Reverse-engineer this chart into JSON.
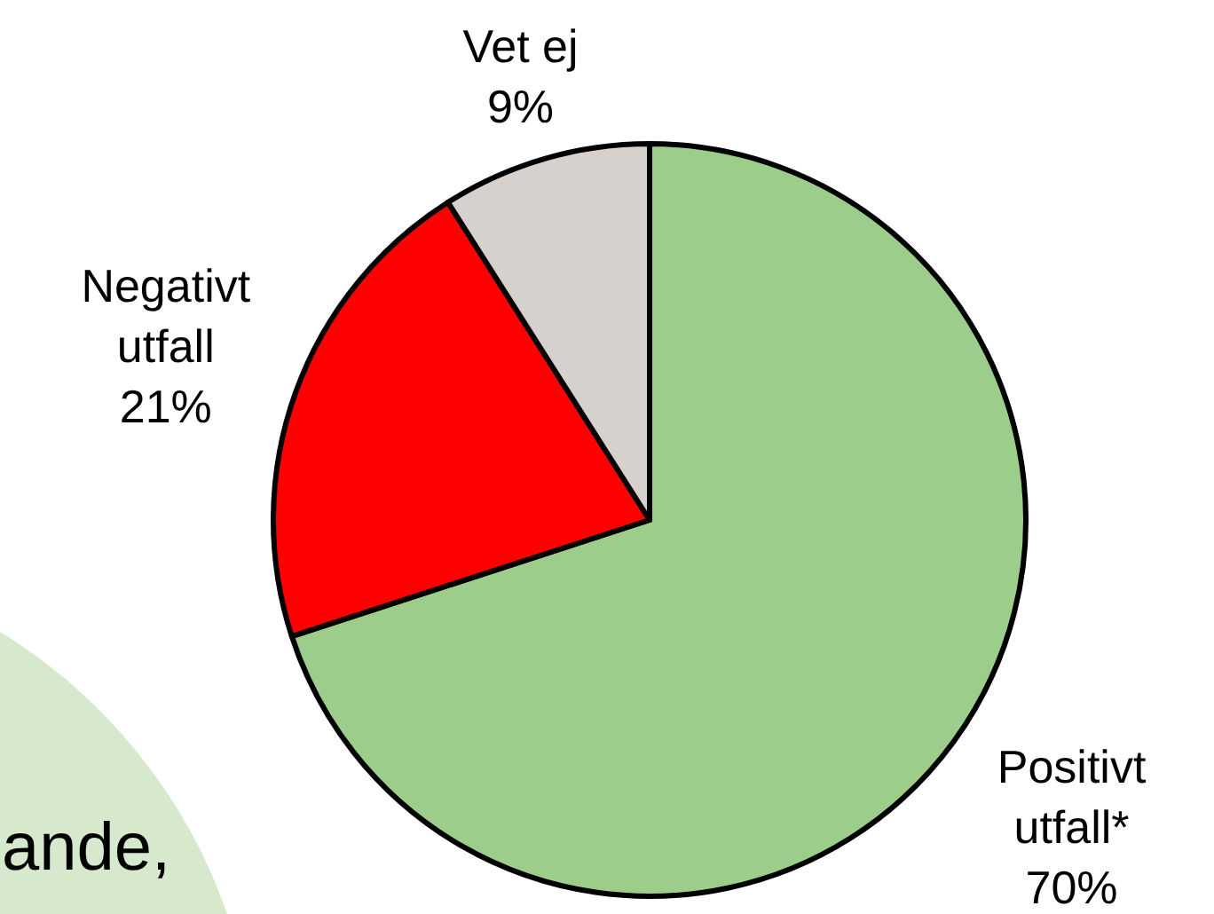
{
  "chart_data": {
    "type": "pie",
    "categories": [
      "Positivt\nutfall*",
      "Negativt\nutfall",
      "Vet ej"
    ],
    "values": [
      70,
      21,
      9
    ],
    "colors": [
      "#9dcd8b",
      "#fe0000",
      "#d6d1cc"
    ],
    "value_labels": [
      "70%",
      "21%",
      "9%"
    ],
    "annotations": [
      "ande,"
    ]
  }
}
